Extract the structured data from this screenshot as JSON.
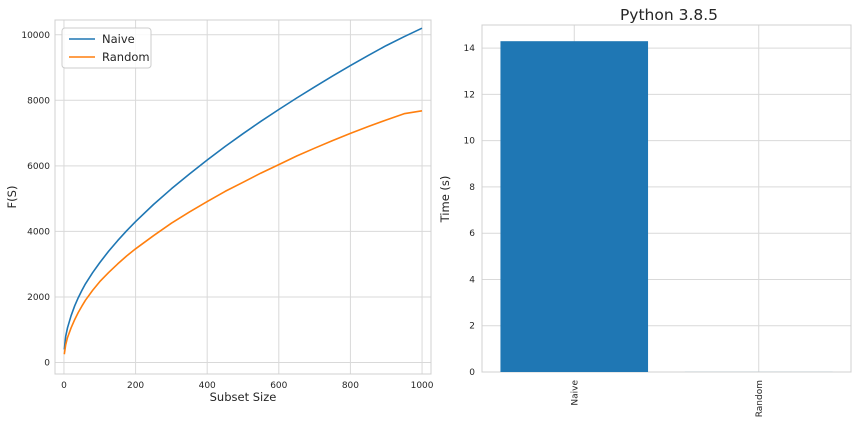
{
  "chart_data": [
    {
      "type": "line",
      "title": "",
      "xlabel": "Subset Size",
      "ylabel": "F(S)",
      "xlim": [
        -25,
        1025
      ],
      "ylim": [
        -350,
        10450
      ],
      "xticks": [
        0,
        200,
        400,
        600,
        800,
        1000
      ],
      "yticks": [
        0,
        2000,
        4000,
        6000,
        8000,
        10000
      ],
      "grid": true,
      "legend": "top-left",
      "x": [
        1,
        5,
        10,
        20,
        30,
        40,
        50,
        60,
        80,
        100,
        125,
        150,
        175,
        200,
        250,
        300,
        350,
        400,
        450,
        500,
        550,
        600,
        650,
        700,
        750,
        800,
        850,
        900,
        950,
        1000
      ],
      "series": [
        {
          "name": "Naive",
          "color": "#1f77b4",
          "values": [
            400,
            800,
            1060,
            1430,
            1730,
            1980,
            2200,
            2400,
            2740,
            3050,
            3400,
            3720,
            4020,
            4300,
            4820,
            5300,
            5750,
            6180,
            6590,
            6980,
            7360,
            7720,
            8070,
            8410,
            8740,
            9060,
            9370,
            9670,
            9940,
            10200
          ]
        },
        {
          "name": "Random",
          "color": "#ff7f0e",
          "values": [
            250,
            540,
            760,
            1060,
            1310,
            1530,
            1720,
            1900,
            2200,
            2470,
            2750,
            3010,
            3250,
            3470,
            3870,
            4250,
            4590,
            4910,
            5220,
            5500,
            5780,
            6040,
            6300,
            6540,
            6770,
            6990,
            7200,
            7400,
            7590,
            7680
          ]
        }
      ]
    },
    {
      "type": "bar",
      "title": "Python 3.8.5",
      "xlabel": "",
      "ylabel": "Time (s)",
      "ylim": [
        0,
        15
      ],
      "yticks": [
        0,
        2,
        4,
        6,
        8,
        10,
        12,
        14
      ],
      "grid": true,
      "categories": [
        "Naive",
        "Random"
      ],
      "values": [
        14.3,
        0.002
      ],
      "color": "#1f77b4"
    }
  ]
}
